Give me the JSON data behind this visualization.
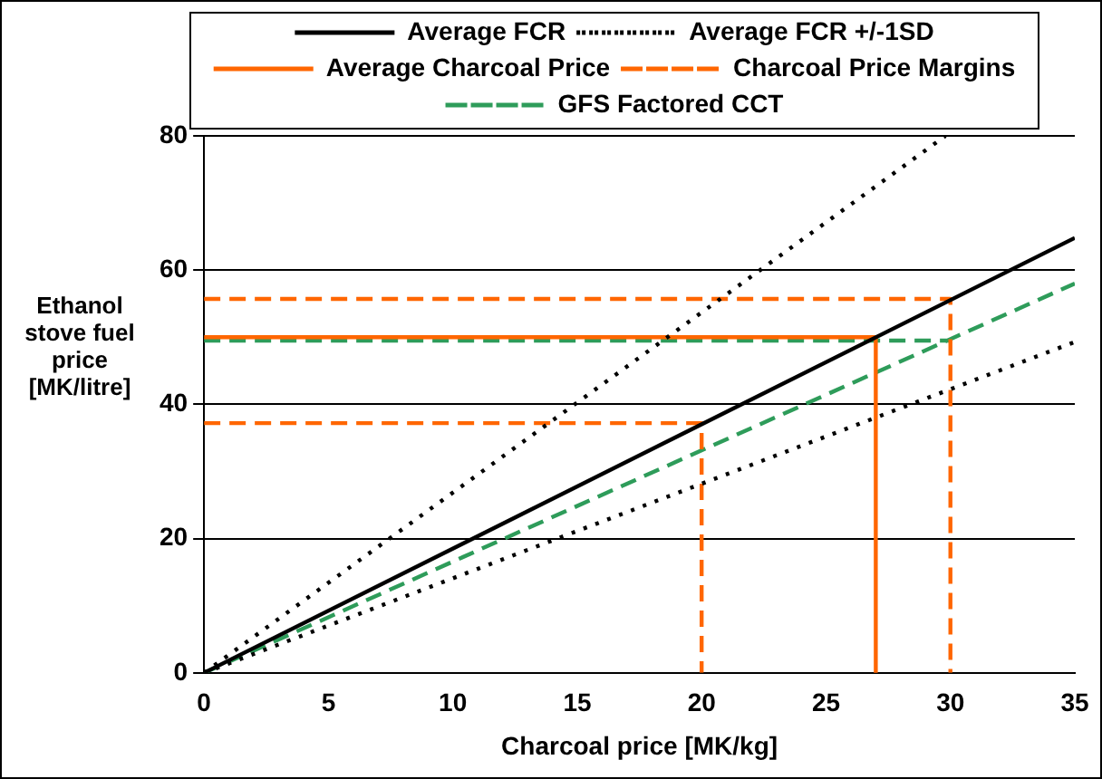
{
  "chart_data": {
    "type": "line",
    "xlabel": "Charcoal price [MK/kg]",
    "ylabel": "Ethanol stove fuel price [MK/litre]",
    "xlim": [
      0,
      35
    ],
    "xticks": [
      0,
      5,
      10,
      15,
      20,
      25,
      30,
      35
    ],
    "ylim": [
      0,
      80
    ],
    "yticks": [
      0,
      20,
      40,
      60,
      80
    ],
    "grid": "y",
    "legend": "top",
    "marker": "none",
    "series": [
      {
        "name": "Average FCR",
        "color": "#000000",
        "line_style": "solid",
        "x": [
          0,
          35
        ],
        "values": [
          0,
          64.8
        ]
      },
      {
        "name": "Average FCR +/-1SD",
        "color": "#000000",
        "line_style": "dotted",
        "x": [
          0,
          29.8,
          null,
          0,
          35
        ],
        "values": [
          0,
          80,
          null,
          0,
          49.3
        ]
      },
      {
        "name": "Average Charcoal Price",
        "color": "#ff6600",
        "line_style": "solid",
        "x": [
          0,
          27,
          27
        ],
        "values": [
          50,
          50,
          0
        ]
      },
      {
        "name": "Charcoal Price Margins",
        "color": "#ff6600",
        "line_style": "dashed",
        "x": [
          0,
          20,
          20,
          null,
          0,
          30,
          30
        ],
        "values": [
          37.2,
          37.2,
          0,
          null,
          55.7,
          55.7,
          0
        ]
      },
      {
        "name": "GFS Factored CCT",
        "color": "#2e9c5a",
        "line_style": "dashed",
        "x": [
          0,
          35,
          null,
          0,
          30
        ],
        "values": [
          0,
          58,
          null,
          49.5,
          49.5
        ]
      }
    ]
  }
}
